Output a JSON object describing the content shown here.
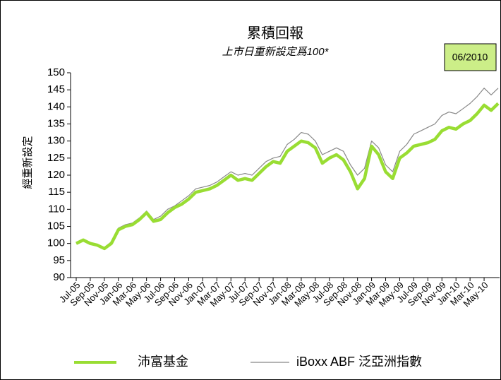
{
  "chart_data": {
    "type": "line",
    "title": "累積回報",
    "subtitle": "上市日重新設定爲100*",
    "ylabel": "經重新設定",
    "annotation": "06/2010",
    "categories": [
      "Jul-05",
      null,
      "Sep-05",
      null,
      "Nov-05",
      null,
      "Jan-06",
      null,
      "Mar-06",
      null,
      "May-06",
      null,
      "Jul-06",
      null,
      "Sep-06",
      null,
      "Nov-06",
      null,
      "Jan-07",
      null,
      "Mar-07",
      null,
      "May-07",
      null,
      "Jul-07",
      null,
      "Sep-07",
      null,
      "Nov-07",
      null,
      "Jan-08",
      null,
      "Mar-08",
      null,
      "May-08",
      null,
      "Jul-08",
      null,
      "Sep-08",
      null,
      "Nov-08",
      null,
      "Jan-09",
      null,
      "Mar-09",
      null,
      "May-09",
      null,
      "Jul-09",
      null,
      "Sep-09",
      null,
      "Nov-09",
      null,
      "Jan-10",
      null,
      "Mar-10",
      null,
      "May-10",
      null,
      null
    ],
    "series": [
      {
        "name": "沛富基金",
        "color": "#99dd33",
        "values": [
          100,
          101,
          100,
          99.5,
          98.5,
          100,
          104,
          105,
          105.5,
          107,
          109,
          106.5,
          107,
          109,
          110.5,
          111.5,
          113,
          115,
          115.5,
          116,
          117,
          118.5,
          120,
          118.5,
          119,
          118.5,
          120.5,
          122.5,
          124,
          123.5,
          127,
          128.5,
          130,
          129.5,
          128,
          123.5,
          125,
          126,
          124.5,
          121,
          116,
          119,
          128.5,
          126,
          121,
          119,
          125,
          126.5,
          128.5,
          129,
          129.5,
          130.5,
          133,
          134,
          133.5,
          135,
          136,
          138,
          140.5,
          139,
          141
        ]
      },
      {
        "name": "iBoxx ABF 泛亞洲指數",
        "color": "#888888",
        "values": [
          100,
          101.2,
          100.2,
          99.5,
          98.8,
          100.5,
          104.5,
          105.5,
          106,
          107.5,
          109.5,
          107,
          108,
          110,
          111,
          112.5,
          114,
          116,
          116.5,
          117,
          118,
          119.5,
          121,
          120,
          120.5,
          120,
          122,
          124,
          125,
          125.5,
          129,
          130.5,
          132.5,
          132,
          130,
          126,
          127,
          128,
          127,
          123,
          120,
          122,
          130,
          128,
          123,
          121,
          127,
          129,
          132,
          133,
          134,
          135,
          137.5,
          138.5,
          138,
          139.5,
          141,
          143,
          145.5,
          143.5,
          145.5
        ]
      }
    ],
    "ylim": [
      90,
      150
    ],
    "yticks": [
      90,
      95,
      100,
      105,
      110,
      115,
      120,
      125,
      130,
      135,
      140,
      145,
      150
    ],
    "grid": false,
    "legend": "bottom"
  }
}
